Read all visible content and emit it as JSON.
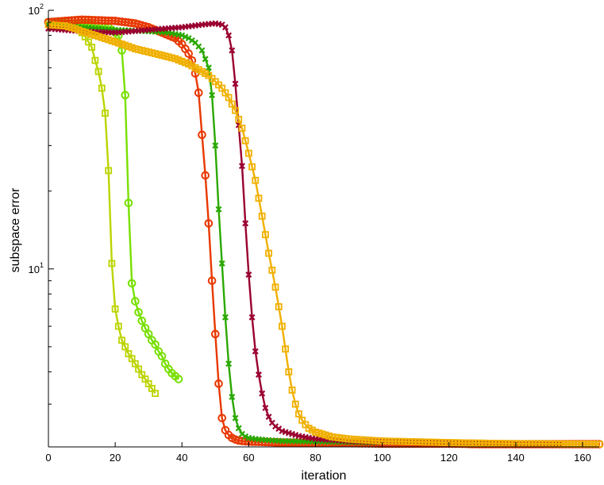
{
  "chart_data": {
    "type": "line",
    "xlabel": "iteration",
    "ylabel": "subspace error",
    "xscale": "linear",
    "yscale": "log",
    "xlim": [
      0,
      165
    ],
    "ylim": [
      2.05,
      100
    ],
    "grid": false,
    "legend": "none",
    "x_ticks": [
      {
        "value": 0,
        "label": "0"
      },
      {
        "value": 20,
        "label": "20"
      },
      {
        "value": 40,
        "label": "40"
      },
      {
        "value": 60,
        "label": "60"
      },
      {
        "value": 80,
        "label": "80"
      },
      {
        "value": 100,
        "label": "100"
      },
      {
        "value": 120,
        "label": "120"
      },
      {
        "value": 140,
        "label": "140"
      },
      {
        "value": 160,
        "label": "160"
      }
    ],
    "y_ticks": [
      {
        "value": 10,
        "base": "10",
        "exp": "1"
      },
      {
        "value": 100,
        "base": "10",
        "exp": "2"
      }
    ],
    "series": [
      {
        "color": "#bcd400",
        "marker": "square",
        "x": [
          0,
          5,
          9,
          11,
          13,
          14,
          15,
          16,
          17,
          18,
          19,
          20,
          21,
          22,
          23,
          24,
          25,
          26,
          27,
          28,
          29,
          30,
          31,
          32
        ],
        "y": [
          90,
          89,
          85,
          79,
          72,
          64,
          58,
          50,
          40,
          24,
          10.5,
          7.0,
          6.0,
          5.3,
          5.0,
          4.7,
          4.5,
          4.3,
          4.1,
          3.9,
          3.75,
          3.6,
          3.45,
          3.3
        ]
      },
      {
        "color": "#78e000",
        "marker": "circle",
        "x": [
          0,
          6,
          12,
          18,
          21,
          22,
          23,
          24,
          25,
          26,
          27,
          28,
          29,
          30,
          31,
          32,
          33,
          34,
          35,
          36,
          37,
          38,
          39
        ],
        "y": [
          90,
          89,
          88,
          86,
          80,
          70,
          47,
          18,
          8.8,
          7.5,
          6.8,
          6.3,
          5.9,
          5.6,
          5.3,
          5.1,
          4.8,
          4.6,
          4.3,
          4.1,
          3.95,
          3.85,
          3.75
        ]
      },
      {
        "color": "#e83800",
        "marker": "circle",
        "x": [
          0,
          10,
          20,
          26,
          30,
          34,
          38,
          40,
          42,
          43,
          44,
          45,
          46,
          47,
          48,
          49,
          50,
          51,
          52,
          53,
          54,
          55,
          56,
          57,
          58,
          60,
          65,
          70,
          80,
          90,
          100,
          110,
          120,
          130,
          140,
          145,
          150,
          160,
          165
        ],
        "y": [
          90,
          92,
          91,
          89,
          86,
          82,
          78,
          74,
          68,
          64,
          57,
          48,
          33,
          23,
          15,
          9.0,
          5.6,
          3.6,
          2.65,
          2.38,
          2.28,
          2.22,
          2.19,
          2.17,
          2.16,
          2.15,
          2.14,
          2.13,
          2.12,
          2.12,
          2.11,
          2.11,
          2.11,
          2.1,
          2.1,
          2.1,
          2.1,
          2.1,
          2.1
        ]
      },
      {
        "color": "#2aa800",
        "marker": "x",
        "x": [
          0,
          10,
          20,
          30,
          36,
          40,
          42,
          44,
          46,
          48,
          49,
          50,
          51,
          52,
          53,
          54,
          55,
          56,
          57,
          58,
          59,
          60,
          62,
          65,
          70,
          80,
          90,
          98
        ],
        "y": [
          88,
          86,
          84,
          83,
          82,
          80,
          78,
          75,
          70,
          60,
          47,
          30,
          17,
          10.5,
          6.5,
          4.3,
          3.2,
          2.65,
          2.42,
          2.3,
          2.25,
          2.22,
          2.2,
          2.18,
          2.16,
          2.15,
          2.14,
          2.13
        ]
      },
      {
        "color": "#9a0030",
        "marker": "x",
        "x": [
          0,
          10,
          20,
          30,
          40,
          46,
          50,
          52,
          53,
          54,
          55,
          56,
          57,
          58,
          59,
          60,
          61,
          62,
          63,
          64,
          65,
          66,
          67,
          68,
          70,
          75,
          80,
          90,
          100,
          120,
          140,
          153
        ],
        "y": [
          85,
          83,
          82,
          84,
          86,
          88,
          89,
          88,
          86,
          80,
          70,
          52,
          36,
          25,
          15,
          9.5,
          6.5,
          4.8,
          3.9,
          3.3,
          2.9,
          2.68,
          2.54,
          2.46,
          2.36,
          2.26,
          2.2,
          2.16,
          2.14,
          2.12,
          2.11,
          2.1
        ]
      },
      {
        "color": "#f0b000",
        "marker": "square",
        "x": [
          0,
          5,
          8,
          10,
          14,
          18,
          22,
          26,
          30,
          34,
          38,
          42,
          45,
          48,
          50,
          52,
          54,
          56,
          58,
          60,
          62,
          64,
          66,
          68,
          70,
          71,
          72,
          73,
          74,
          75,
          76,
          77,
          78,
          80,
          85,
          90,
          100,
          120,
          140,
          165
        ],
        "y": [
          88,
          87,
          85,
          83,
          80,
          77,
          74,
          71,
          69,
          67,
          65,
          62,
          59,
          56,
          53,
          50,
          46,
          41,
          35,
          28,
          22,
          16,
          11.5,
          8.5,
          6.0,
          4.9,
          4.0,
          3.4,
          3.0,
          2.75,
          2.6,
          2.5,
          2.42,
          2.34,
          2.24,
          2.2,
          2.16,
          2.13,
          2.11,
          2.1
        ]
      }
    ]
  }
}
